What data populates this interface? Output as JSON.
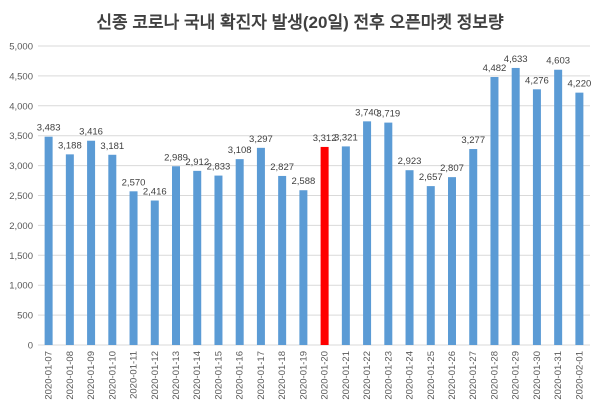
{
  "chart_data": {
    "type": "bar",
    "title": "신종 코로나 국내 확진자 발생(20일) 전후 오픈마켓 정보량",
    "xlabel": "",
    "ylabel": "",
    "ylim": [
      0,
      5000
    ],
    "yticks": [
      "0",
      "500",
      "1,000",
      "1,500",
      "2,000",
      "2,500",
      "3,000",
      "3,500",
      "4,000",
      "4,500",
      "5,000"
    ],
    "ytick_values": [
      0,
      500,
      1000,
      1500,
      2000,
      2500,
      3000,
      3500,
      4000,
      4500,
      5000
    ],
    "grid": true,
    "categories": [
      "2020-01-07",
      "2020-01-08",
      "2020-01-09",
      "2020-01-10",
      "2020-01-11",
      "2020-01-12",
      "2020-01-13",
      "2020-01-14",
      "2020-01-15",
      "2020-01-16",
      "2020-01-17",
      "2020-01-18",
      "2020-01-19",
      "2020-01-20",
      "2020-01-21",
      "2020-01-22",
      "2020-01-23",
      "2020-01-24",
      "2020-01-25",
      "2020-01-26",
      "2020-01-27",
      "2020-01-28",
      "2020-01-29",
      "2020-01-30",
      "2020-01-31",
      "2020-02-01"
    ],
    "values": [
      3483,
      3188,
      3416,
      3181,
      2570,
      2416,
      2989,
      2912,
      2833,
      3108,
      3297,
      2827,
      2588,
      3312,
      3321,
      3740,
      3719,
      2923,
      2657,
      2807,
      3277,
      4482,
      4633,
      4276,
      4603,
      4220
    ],
    "value_labels": [
      "3,483",
      "3,188",
      "3,416",
      "3,181",
      "2,570",
      "2,416",
      "2,989",
      "2,912",
      "2,833",
      "3,108",
      "3,297",
      "2,827",
      "2,588",
      "3,312",
      "3,321",
      "3,740",
      "3,719",
      "2,923",
      "2,657",
      "2,807",
      "3,277",
      "4,482",
      "4,633",
      "4,276",
      "4,603",
      "4,220"
    ],
    "highlight_index": 13,
    "colors": {
      "bar": "#5b9bd5",
      "highlight": "#ff0000",
      "highlight_label": "#c00000"
    }
  }
}
